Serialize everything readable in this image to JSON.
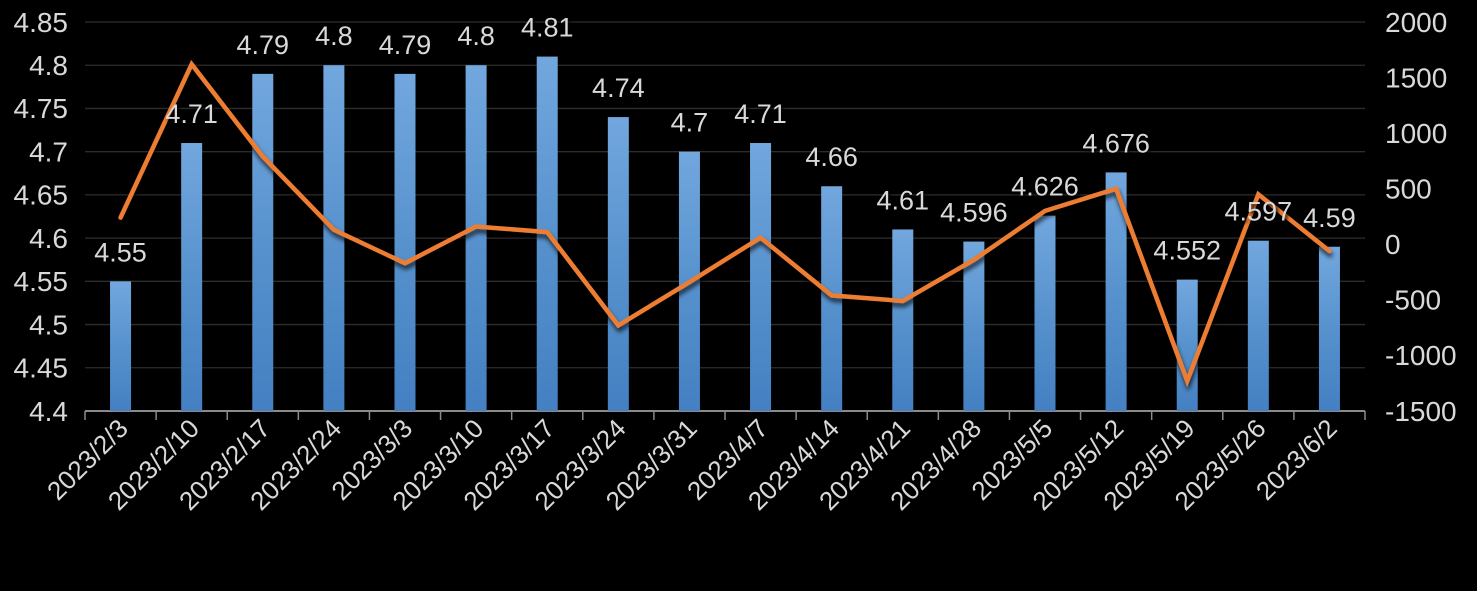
{
  "chart_data": {
    "type": "bar+line combo",
    "title": "",
    "legend": "none",
    "grid": true,
    "background": "#000000",
    "categories": [
      "2023/2/3",
      "2023/2/10",
      "2023/2/17",
      "2023/2/24",
      "2023/3/3",
      "2023/3/10",
      "2023/3/17",
      "2023/3/24",
      "2023/3/31",
      "2023/4/7",
      "2023/4/14",
      "2023/4/21",
      "2023/4/28",
      "2023/5/5",
      "2023/5/12",
      "2023/5/19",
      "2023/5/26",
      "2023/6/2"
    ],
    "series": [
      {
        "id": "bars",
        "type": "bar",
        "axis": "left",
        "values": [
          4.55,
          4.71,
          4.79,
          4.8,
          4.79,
          4.8,
          4.81,
          4.74,
          4.7,
          4.71,
          4.66,
          4.61,
          4.596,
          4.626,
          4.676,
          4.552,
          4.597,
          4.59
        ],
        "data_labels": [
          "4.55",
          "4.71",
          "4.79",
          "4.8",
          "4.79",
          "4.8",
          "4.81",
          "4.74",
          "4.7",
          "4.71",
          "4.66",
          "4.61",
          "4.596",
          "4.626",
          "4.676",
          "4.552",
          "4.597",
          "4.59"
        ]
      },
      {
        "id": "line",
        "type": "line",
        "axis": "right",
        "values": [
          240,
          1620,
          790,
          130,
          -170,
          160,
          110,
          -730,
          -340,
          60,
          -460,
          -510,
          -140,
          300,
          500,
          -1230,
          450,
          -60
        ]
      }
    ],
    "left_axis": {
      "min": 4.4,
      "max": 4.85,
      "step": 0.05,
      "tick_labels": [
        "4.85",
        "4.8",
        "4.75",
        "4.7",
        "4.65",
        "4.6",
        "4.55",
        "4.5",
        "4.45",
        "4.4"
      ]
    },
    "right_axis": {
      "min": -1500,
      "max": 2000,
      "step": 500,
      "tick_labels": [
        "2000",
        "1500",
        "1000",
        "500",
        "0",
        "-500",
        "-1000",
        "-1500"
      ]
    },
    "colors": {
      "background": "#000000",
      "bar_gradient_top": "#72A7DE",
      "bar_gradient_mid": "#5590CC",
      "bar_gradient_bottom": "#4480C2",
      "line": "#ED7D31",
      "text": "#D9D9D9",
      "gridline": "#2D2D2D",
      "axis_line": "#8A8A8A"
    }
  }
}
